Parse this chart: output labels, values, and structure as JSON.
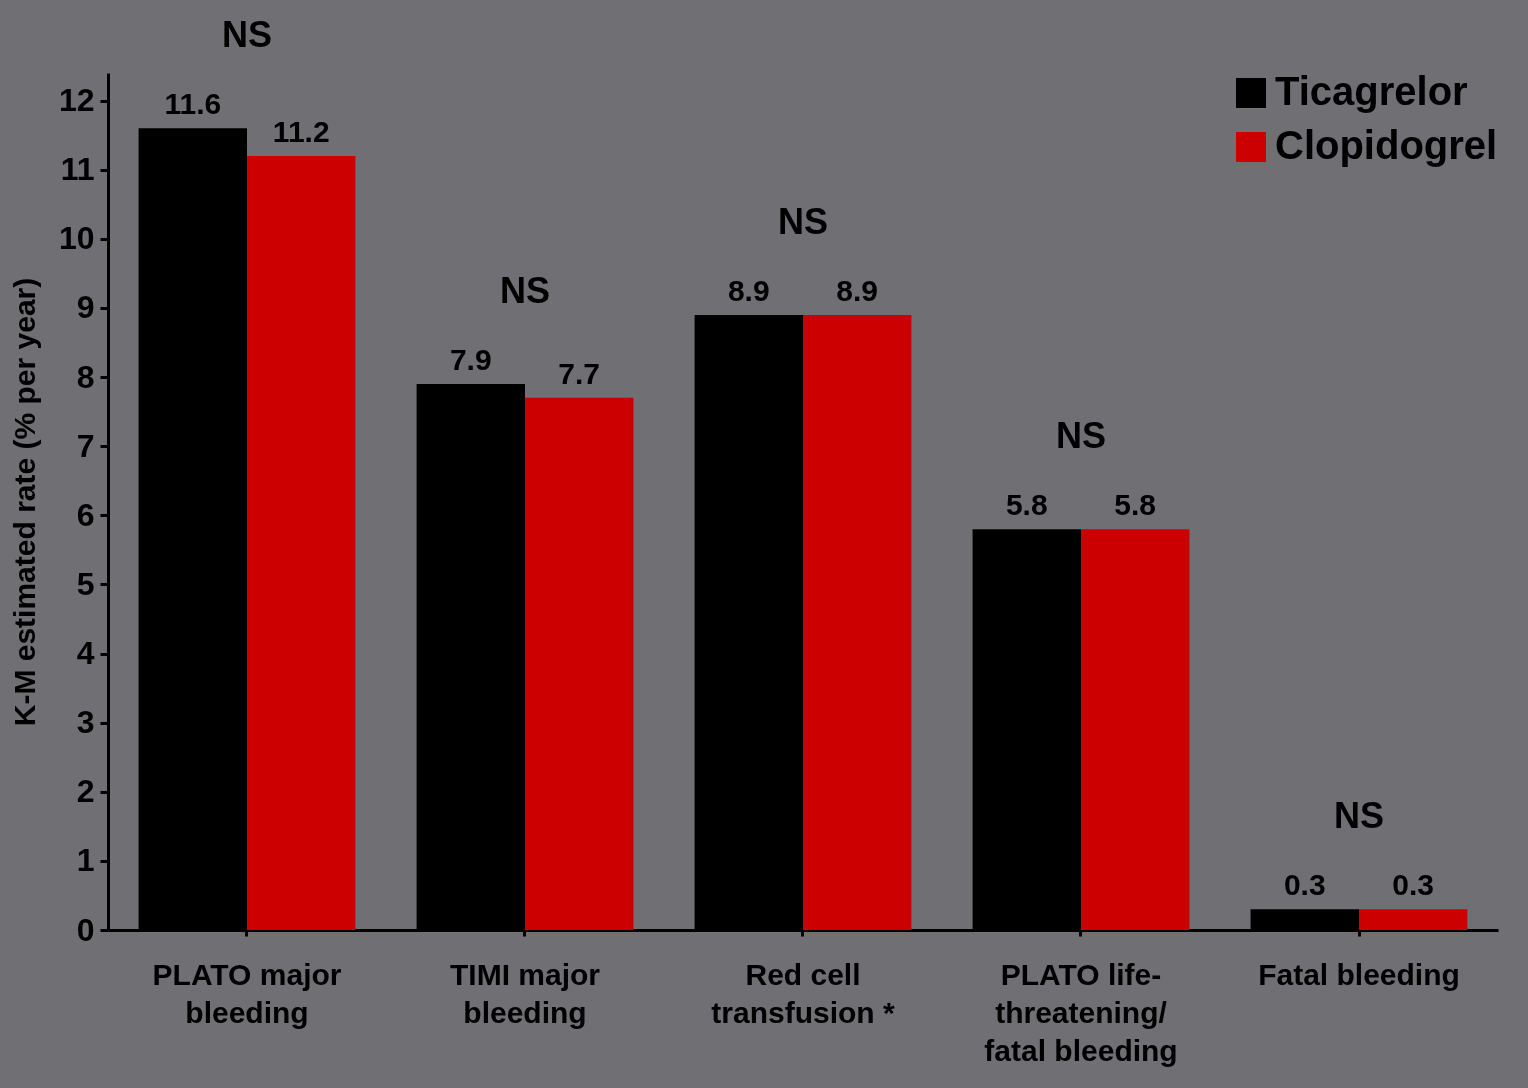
{
  "chart_data": {
    "type": "bar",
    "ylabel": "K-M estimated rate (% per year)",
    "categories": [
      "PLATO major bleeding",
      "TIMI major bleeding",
      "Red cell transfusion *",
      "PLATO life-threatening/fatal bleeding",
      "Fatal bleeding"
    ],
    "series": [
      {
        "name": "Ticagrelor",
        "color": "#000000",
        "values": [
          11.6,
          7.9,
          8.9,
          5.8,
          0.3
        ]
      },
      {
        "name": "Clopidogrel",
        "color": "#cc0000",
        "values": [
          11.2,
          7.7,
          8.9,
          5.8,
          0.3
        ]
      }
    ],
    "ylim": [
      0,
      12.4
    ],
    "yticks": [
      0,
      1,
      2,
      3,
      4,
      5,
      6,
      7,
      8,
      9,
      10,
      11,
      12
    ],
    "data_labels": true,
    "legend": "top right",
    "grid": false,
    "annotations": [
      "NS",
      "NS",
      "NS",
      "NS",
      "NS"
    ]
  }
}
